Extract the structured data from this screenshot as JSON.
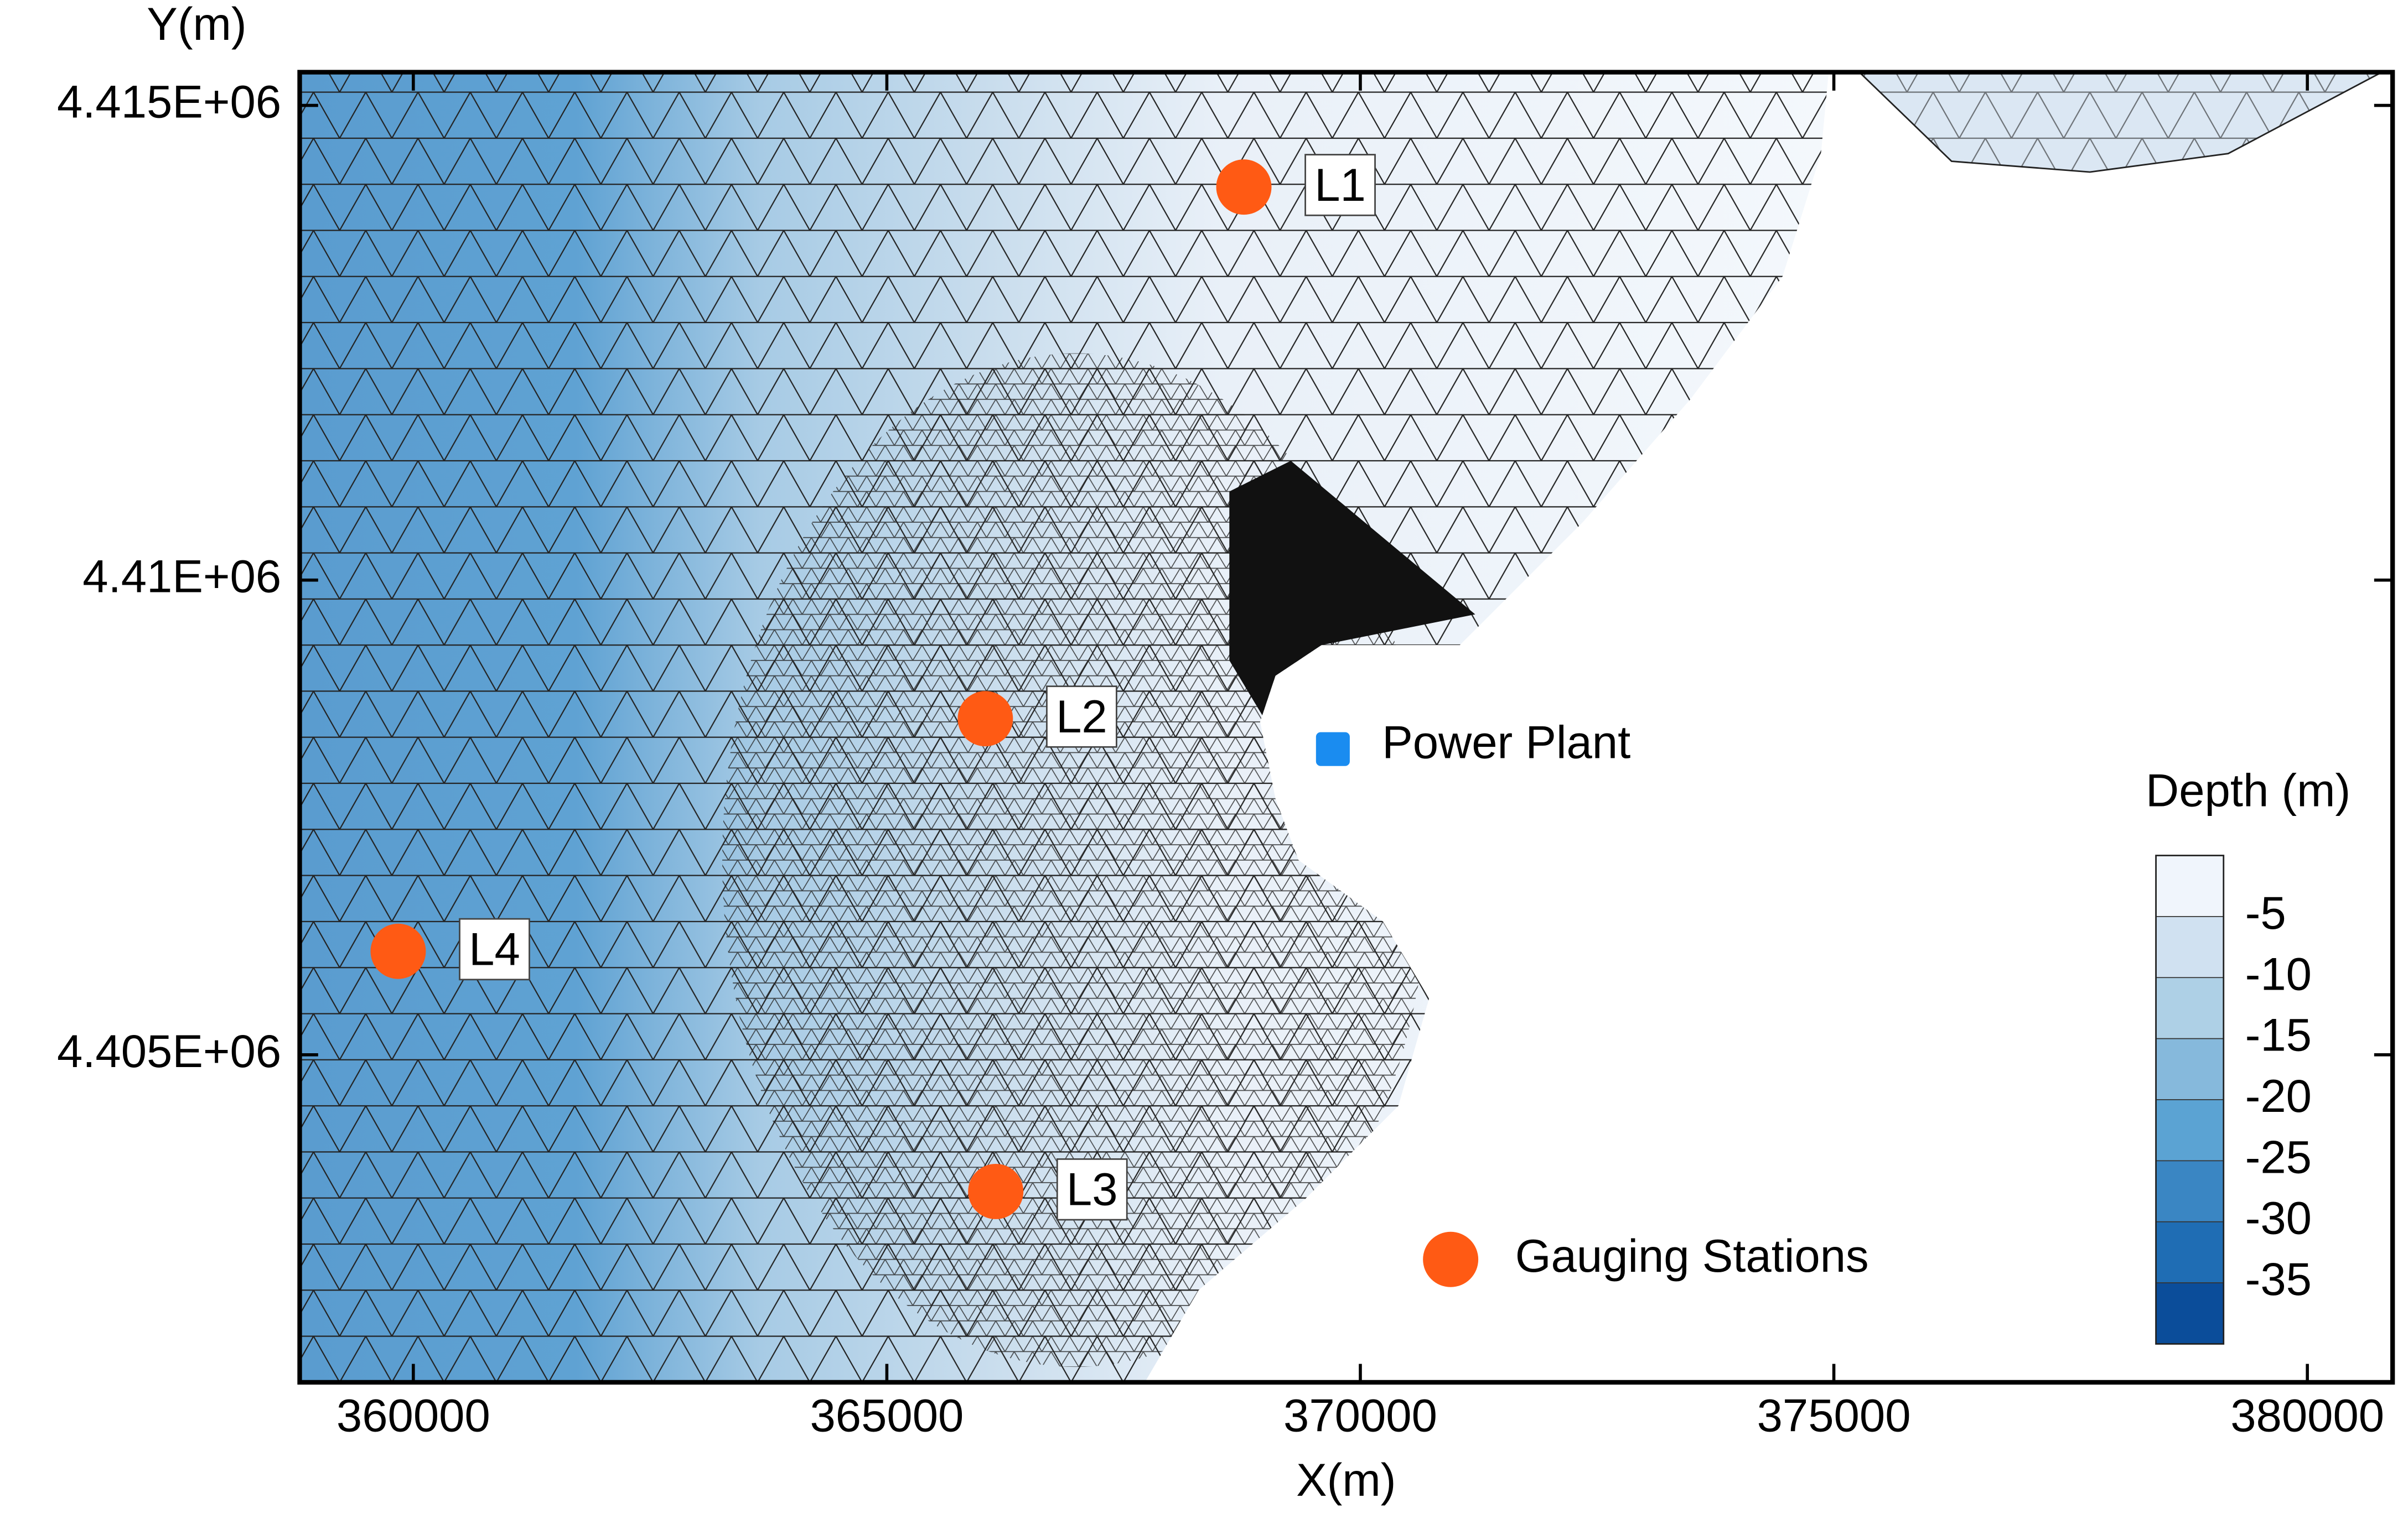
{
  "chart_data": {
    "type": "map",
    "x_label": "X(m)",
    "y_label": "Y(m)",
    "xlim": [
      358800,
      380900
    ],
    "ylim": [
      4401550,
      4415350
    ],
    "xticks": [
      360000,
      365000,
      370000,
      375000,
      380000
    ],
    "yticks": [
      {
        "value": 4405000,
        "label": "4.405E+06"
      },
      {
        "value": 4410000,
        "label": "4.41E+06"
      },
      {
        "value": 4415000,
        "label": "4.415E+06"
      }
    ],
    "stations": {
      "name": "Gauging Stations",
      "color": "#ff5a14",
      "labels": [
        "L1",
        "L2",
        "L3",
        "L4"
      ],
      "x": [
        368770,
        366040,
        366150,
        359840
      ],
      "y": [
        4414140,
        4408540,
        4403560,
        4406090
      ]
    },
    "power_plant": {
      "label": "Power Plant",
      "color": "#1a8cf0",
      "x": 369710,
      "y": 4408220
    },
    "colorbar": {
      "title": "Depth (m)",
      "levels": [
        -5,
        -10,
        -15,
        -20,
        -25,
        -30,
        -35
      ],
      "colors": [
        "#f0f5fc",
        "#d0e1f1",
        "#aed0e6",
        "#86b9dc",
        "#5ba3d3",
        "#3a86c3",
        "#1f6db4",
        "#0b4d9a"
      ]
    }
  }
}
